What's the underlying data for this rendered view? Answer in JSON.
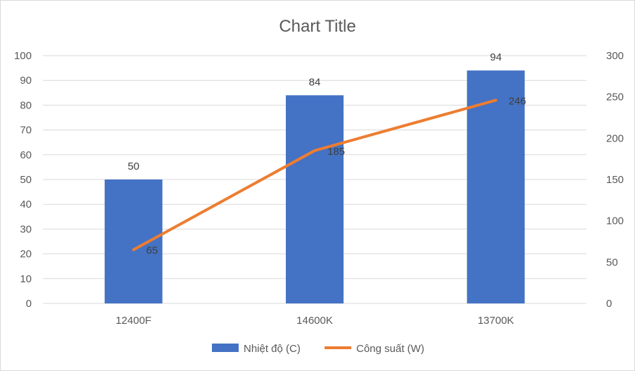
{
  "chart_data": {
    "type": "bar+line",
    "title": "Chart Title",
    "categories": [
      "12400F",
      "14600K",
      "13700K"
    ],
    "series": [
      {
        "name": "Nhiệt độ (C)",
        "type": "bar",
        "axis": "left",
        "values": [
          50,
          84,
          94
        ],
        "color": "#4472C4"
      },
      {
        "name": "Công suất (W)",
        "type": "line",
        "axis": "right",
        "values": [
          65,
          185,
          246
        ],
        "color": "#ED7D31"
      }
    ],
    "y_left": {
      "min": 0,
      "max": 100,
      "step": 10,
      "ticks": [
        "0",
        "10",
        "20",
        "30",
        "40",
        "50",
        "60",
        "70",
        "80",
        "90",
        "100"
      ]
    },
    "y_right": {
      "min": 0,
      "max": 300,
      "step": 50,
      "ticks": [
        "0",
        "50",
        "100",
        "150",
        "200",
        "250",
        "300"
      ]
    },
    "data_labels": true,
    "grid": true,
    "legend_position": "bottom"
  }
}
